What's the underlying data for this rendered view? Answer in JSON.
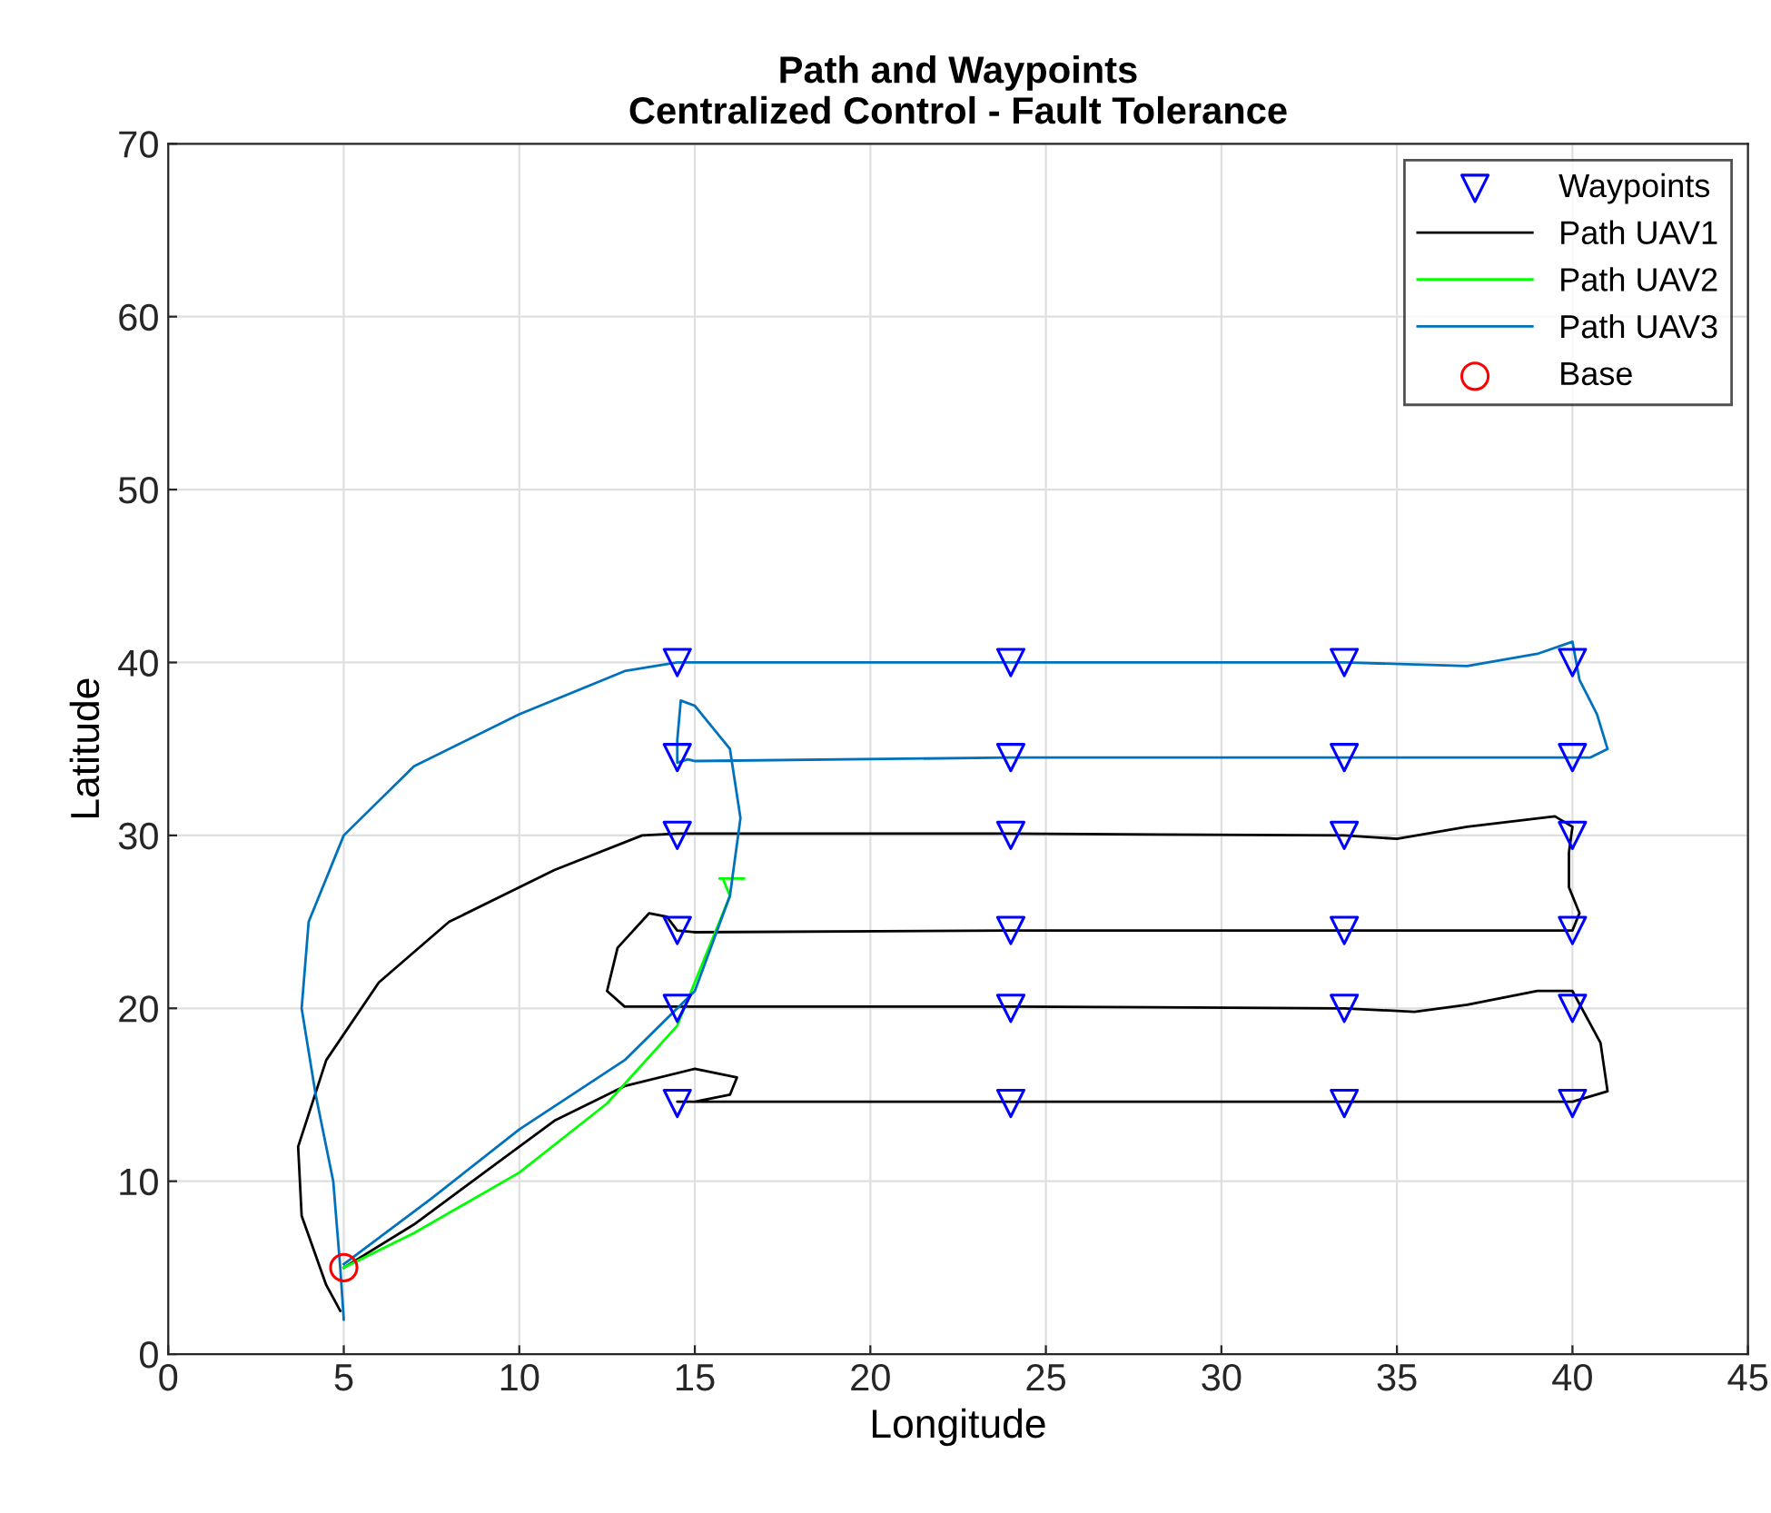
{
  "chart_data": {
    "type": "line",
    "title": "Path and Waypoints\nCentralized Control - Fault Tolerance",
    "xlabel": "Longitude",
    "ylabel": "Latitude",
    "xlim": [
      0,
      45
    ],
    "ylim": [
      0,
      70
    ],
    "xticks": [
      0,
      5,
      10,
      15,
      20,
      25,
      30,
      35,
      40,
      45
    ],
    "yticks": [
      0,
      10,
      20,
      30,
      40,
      50,
      60,
      70
    ],
    "grid": true,
    "legend": "top right",
    "series": [
      {
        "name": "Waypoints",
        "type": "scatter",
        "marker": "triangle",
        "color": "#0000ff",
        "x": [
          14.5,
          24,
          33.5,
          40,
          14.5,
          24,
          33.5,
          40,
          14.5,
          24,
          33.5,
          40,
          14.5,
          24,
          33.5,
          40,
          14.5,
          24,
          33.5,
          40,
          14.5,
          24,
          33.5,
          40
        ],
        "values": [
          14.5,
          14.5,
          14.5,
          14.5,
          20,
          20,
          20,
          20,
          24.5,
          24.5,
          24.5,
          24.5,
          30,
          30,
          30,
          30,
          34.5,
          34.5,
          34.5,
          34.5,
          40,
          40,
          40,
          40
        ]
      },
      {
        "name": "Path UAV1",
        "color": "#000000",
        "x": [
          5,
          7,
          9,
          11,
          13,
          15,
          16.2,
          16,
          15,
          14.5,
          24,
          33.5,
          40,
          41,
          40.8,
          40,
          39,
          37,
          35.5,
          33.5,
          24,
          14.5,
          13,
          12.5,
          12.8,
          13.7,
          14.2,
          14.5,
          15,
          24,
          33.5,
          40,
          40.2,
          39.9,
          39.9,
          40,
          39.5,
          37,
          35,
          33.5,
          24,
          14.5,
          13.5,
          11,
          8,
          6,
          4.5,
          3.7,
          3.8,
          4.5,
          4.9
        ],
        "values": [
          5,
          7.5,
          10.5,
          13.5,
          15.5,
          16.5,
          16,
          15,
          14.6,
          14.6,
          14.6,
          14.6,
          14.6,
          15.2,
          18,
          21,
          21,
          20.2,
          19.8,
          20,
          20.1,
          20.1,
          20.1,
          21,
          23.5,
          25.5,
          25.3,
          24.5,
          24.4,
          24.5,
          24.5,
          24.5,
          25.5,
          27,
          29,
          30.5,
          31.1,
          30.5,
          29.8,
          30,
          30.1,
          30.1,
          30,
          28,
          25,
          21.5,
          17,
          12,
          8,
          4,
          2.5
        ]
      },
      {
        "name": "Path UAV2",
        "color": "#00ff00",
        "x": [
          5,
          7,
          10,
          12.5,
          14.5,
          15.5,
          16,
          15.8,
          15.7,
          16.4
        ],
        "values": [
          5,
          7,
          10.5,
          14.5,
          19,
          24,
          26.5,
          27.5,
          27.5,
          27.5
        ]
      },
      {
        "name": "Path UAV3",
        "color": "#0072bd",
        "x": [
          5,
          4.9,
          4.7,
          4.2,
          3.8,
          4,
          5,
          7,
          10,
          13,
          14.5,
          24,
          33.5,
          37,
          39,
          40,
          40.2,
          40.7,
          41,
          40.5,
          33.5,
          24,
          15,
          14.8,
          14.5,
          14.5,
          14.6,
          15,
          16,
          16.3,
          16,
          15,
          13,
          10,
          7.5,
          5
        ],
        "values": [
          2,
          5,
          10,
          15,
          20,
          25,
          30,
          34,
          37,
          39.5,
          40,
          40,
          40,
          39.8,
          40.5,
          41.2,
          39,
          37,
          35,
          34.5,
          34.5,
          34.5,
          34.3,
          34.4,
          34.2,
          35.5,
          37.8,
          37.5,
          35,
          31,
          26.5,
          21,
          17,
          13,
          9,
          5.2
        ]
      },
      {
        "name": "Base",
        "type": "scatter",
        "marker": "circle",
        "color": "#ff0000",
        "x": [
          5
        ],
        "values": [
          5
        ]
      }
    ]
  }
}
